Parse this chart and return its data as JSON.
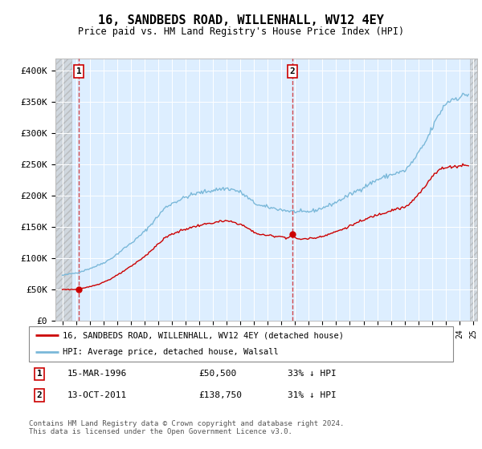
{
  "title": "16, SANDBEDS ROAD, WILLENHALL, WV12 4EY",
  "subtitle": "Price paid vs. HM Land Registry's House Price Index (HPI)",
  "ylim": [
    0,
    420000
  ],
  "yticks": [
    0,
    50000,
    100000,
    150000,
    200000,
    250000,
    300000,
    350000,
    400000
  ],
  "ytick_labels": [
    "£0",
    "£50K",
    "£100K",
    "£150K",
    "£200K",
    "£250K",
    "£300K",
    "£350K",
    "£400K"
  ],
  "xlim_start": 1994.5,
  "xlim_end": 2025.3,
  "hatch_start": 2024.75,
  "hatch_end": 2025.3,
  "hatch_left_end": 1995.7,
  "hpi_color": "#7ab8d9",
  "price_color": "#cc0000",
  "transaction1": {
    "year": 1996.2,
    "price": 50500,
    "label": "1",
    "note": "15-MAR-1996",
    "amount": "£50,500",
    "pct": "33% ↓ HPI"
  },
  "transaction2": {
    "year": 2011.79,
    "price": 138750,
    "label": "2",
    "note": "13-OCT-2011",
    "amount": "£138,750",
    "pct": "31% ↓ HPI"
  },
  "legend_line1": "16, SANDBEDS ROAD, WILLENHALL, WV12 4EY (detached house)",
  "legend_line2": "HPI: Average price, detached house, Walsall",
  "footer": "Contains HM Land Registry data © Crown copyright and database right 2024.\nThis data is licensed under the Open Government Licence v3.0."
}
